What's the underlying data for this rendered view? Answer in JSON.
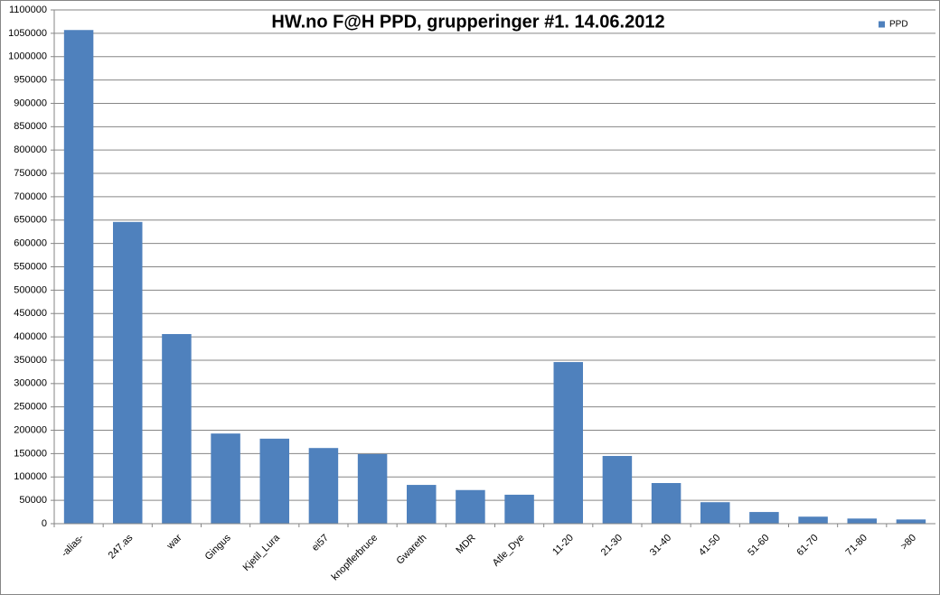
{
  "chart_data": {
    "type": "bar",
    "title": "HW.no F@H PPD, grupperinger #1. 14.06.2012",
    "categories": [
      "-alias-",
      "247.as",
      "war",
      "Gingus",
      "Kjetil_Lura",
      "ei57",
      "knopflerbruce",
      "Gwareth",
      "MDR",
      "Atle_Dye",
      "11-20",
      "21-30",
      "31-40",
      "41-50",
      "51-60",
      "61-70",
      "71-80",
      ">80"
    ],
    "series": [
      {
        "name": "PPD",
        "color": "#4f81bd",
        "values": [
          1057000,
          646000,
          406000,
          193000,
          182000,
          162000,
          149000,
          83000,
          72000,
          62000,
          346000,
          145000,
          87000,
          46000,
          25000,
          15000,
          11000,
          9000
        ]
      }
    ],
    "ylim": [
      0,
      1100000
    ],
    "yticks": [
      0,
      50000,
      100000,
      150000,
      200000,
      250000,
      300000,
      350000,
      400000,
      450000,
      500000,
      550000,
      600000,
      650000,
      700000,
      750000,
      800000,
      850000,
      900000,
      950000,
      1000000,
      1050000,
      1100000
    ],
    "grid": true,
    "legend": "top-right"
  }
}
